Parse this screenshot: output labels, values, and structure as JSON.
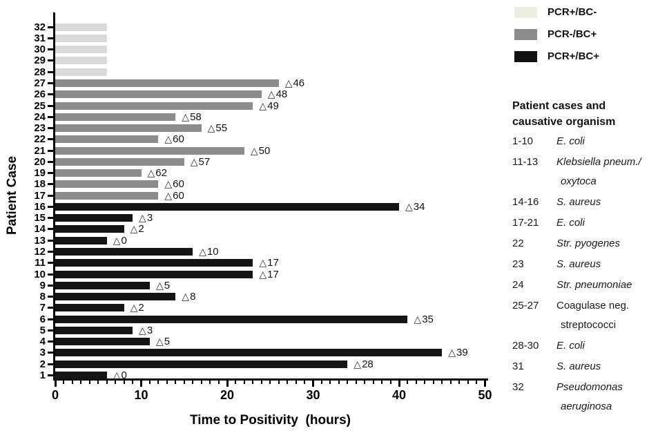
{
  "chart_data": {
    "type": "bar",
    "orientation": "horizontal",
    "xlabel": "Time to Positivity  (hours)",
    "ylabel": "Patient Case",
    "xlim": [
      0,
      50
    ],
    "x_major_ticks": [
      0,
      10,
      20,
      30,
      40,
      50
    ],
    "x_minor_tick_interval": 1,
    "grid": false,
    "delta_prefix": "△",
    "legend_position": "top-right",
    "legend": [
      {
        "label": "PCR+/BC-",
        "color": "#eeede1"
      },
      {
        "label": "PCR-/BC+",
        "color": "#8c8c8c"
      },
      {
        "label": "PCR+/BC+",
        "color": "#111111"
      }
    ],
    "group_bar_colors": {
      "PCR+/BC-": "#d9d9d9",
      "PCR-/BC+": "#8c8c8c",
      "PCR+/BC+": "#141414"
    },
    "bars": [
      {
        "case": 1,
        "ttp_hours": 6,
        "delta": "0",
        "group": "PCR+/BC+"
      },
      {
        "case": 2,
        "ttp_hours": 34,
        "delta": "28",
        "group": "PCR+/BC+"
      },
      {
        "case": 3,
        "ttp_hours": 45,
        "delta": "39",
        "group": "PCR+/BC+"
      },
      {
        "case": 4,
        "ttp_hours": 11,
        "delta": "5",
        "group": "PCR+/BC+"
      },
      {
        "case": 5,
        "ttp_hours": 9,
        "delta": "3",
        "group": "PCR+/BC+"
      },
      {
        "case": 6,
        "ttp_hours": 41,
        "delta": "35",
        "group": "PCR+/BC+"
      },
      {
        "case": 7,
        "ttp_hours": 8,
        "delta": "2",
        "group": "PCR+/BC+"
      },
      {
        "case": 8,
        "ttp_hours": 14,
        "delta": "8",
        "group": "PCR+/BC+"
      },
      {
        "case": 9,
        "ttp_hours": 11,
        "delta": "5",
        "group": "PCR+/BC+"
      },
      {
        "case": 10,
        "ttp_hours": 23,
        "delta": "17",
        "group": "PCR+/BC+"
      },
      {
        "case": 11,
        "ttp_hours": 23,
        "delta": "17",
        "group": "PCR+/BC+"
      },
      {
        "case": 12,
        "ttp_hours": 16,
        "delta": "10",
        "group": "PCR+/BC+"
      },
      {
        "case": 13,
        "ttp_hours": 6,
        "delta": "0",
        "group": "PCR+/BC+"
      },
      {
        "case": 14,
        "ttp_hours": 8,
        "delta": "2",
        "group": "PCR+/BC+"
      },
      {
        "case": 15,
        "ttp_hours": 9,
        "delta": "3",
        "group": "PCR+/BC+"
      },
      {
        "case": 16,
        "ttp_hours": 40,
        "delta": "34",
        "group": "PCR+/BC+"
      },
      {
        "case": 17,
        "ttp_hours": 12,
        "delta": "60",
        "group": "PCR-/BC+"
      },
      {
        "case": 18,
        "ttp_hours": 12,
        "delta": "60",
        "group": "PCR-/BC+"
      },
      {
        "case": 19,
        "ttp_hours": 10,
        "delta": "62",
        "group": "PCR-/BC+"
      },
      {
        "case": 20,
        "ttp_hours": 15,
        "delta": "57",
        "group": "PCR-/BC+"
      },
      {
        "case": 21,
        "ttp_hours": 22,
        "delta": "50",
        "group": "PCR-/BC+"
      },
      {
        "case": 22,
        "ttp_hours": 12,
        "delta": "60",
        "group": "PCR-/BC+"
      },
      {
        "case": 23,
        "ttp_hours": 17,
        "delta": "55",
        "group": "PCR-/BC+"
      },
      {
        "case": 24,
        "ttp_hours": 14,
        "delta": "58",
        "group": "PCR-/BC+"
      },
      {
        "case": 25,
        "ttp_hours": 23,
        "delta": "49",
        "group": "PCR-/BC+"
      },
      {
        "case": 26,
        "ttp_hours": 24,
        "delta": "48",
        "group": "PCR-/BC+"
      },
      {
        "case": 27,
        "ttp_hours": 26,
        "delta": "46",
        "group": "PCR-/BC+"
      },
      {
        "case": 28,
        "ttp_hours": 6,
        "delta": null,
        "group": "PCR+/BC-"
      },
      {
        "case": 29,
        "ttp_hours": 6,
        "delta": null,
        "group": "PCR+/BC-"
      },
      {
        "case": 30,
        "ttp_hours": 6,
        "delta": null,
        "group": "PCR+/BC-"
      },
      {
        "case": 31,
        "ttp_hours": 6,
        "delta": null,
        "group": "PCR+/BC-"
      },
      {
        "case": 32,
        "ttp_hours": 6,
        "delta": null,
        "group": "PCR+/BC-"
      }
    ]
  },
  "side_panel": {
    "title_line1": "Patient cases and",
    "title_line2": "causative organism",
    "rows": [
      {
        "range": "1-10",
        "organism": "E. coli",
        "organism_line2": null,
        "italic": true
      },
      {
        "range": "11-13",
        "organism": "Klebsiella pneum./",
        "organism_line2": "oxytoca",
        "italic": true
      },
      {
        "range": "14-16",
        "organism": "S. aureus",
        "organism_line2": null,
        "italic": true
      },
      {
        "range": "17-21",
        "organism": "E. coli",
        "organism_line2": null,
        "italic": true
      },
      {
        "range": "22",
        "organism": "Str. pyogenes",
        "organism_line2": null,
        "italic": true
      },
      {
        "range": "23",
        "organism": "S. aureus",
        "organism_line2": null,
        "italic": true
      },
      {
        "range": "24",
        "organism": "Str. pneumoniae",
        "organism_line2": null,
        "italic": true
      },
      {
        "range": "25-27",
        "organism": "Coagulase neg.",
        "organism_line2": "streptococci",
        "italic": false
      },
      {
        "range": "28-30",
        "organism": "E. coli",
        "organism_line2": null,
        "italic": true
      },
      {
        "range": "31",
        "organism": "S. aureus",
        "organism_line2": null,
        "italic": true
      },
      {
        "range": "32",
        "organism": "Pseudomonas",
        "organism_line2": "aeruginosa",
        "italic": true
      }
    ]
  }
}
